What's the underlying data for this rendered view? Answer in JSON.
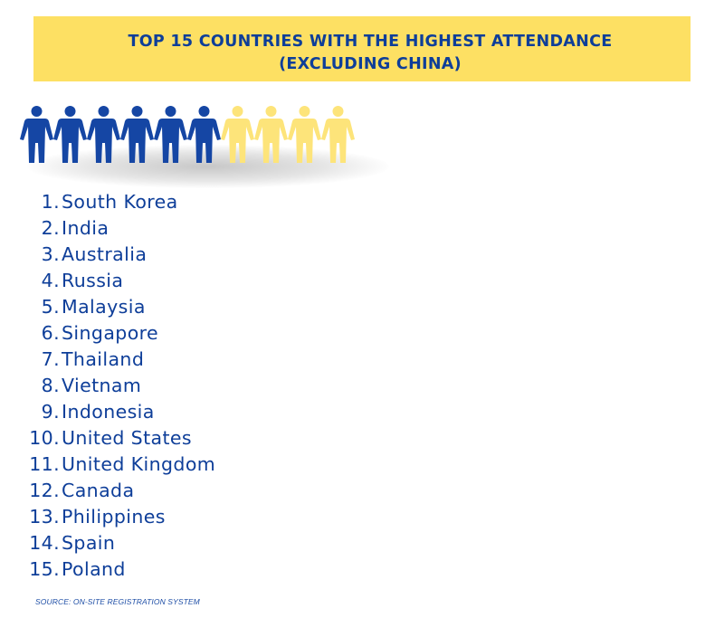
{
  "title": {
    "line1": "TOP 15 COUNTRIES WITH THE HIGHEST ATTENDANCE",
    "line2": "(EXCLUDING CHINA)"
  },
  "people_figures": {
    "count_total": 10,
    "count_highlighted": 6,
    "highlight_color": "#1546a4",
    "rest_color": "#fde47a"
  },
  "countries": [
    {
      "rank": "1.",
      "name": "South Korea"
    },
    {
      "rank": "2.",
      "name": "India"
    },
    {
      "rank": "3.",
      "name": "Australia"
    },
    {
      "rank": "4.",
      "name": "Russia"
    },
    {
      "rank": "5.",
      "name": "Malaysia"
    },
    {
      "rank": "6.",
      "name": "Singapore"
    },
    {
      "rank": "7.",
      "name": "Thailand"
    },
    {
      "rank": "8.",
      "name": "Vietnam"
    },
    {
      "rank": "9.",
      "name": "Indonesia"
    },
    {
      "rank": "10.",
      "name": "United States"
    },
    {
      "rank": "11.",
      "name": "United Kingdom"
    },
    {
      "rank": "12.",
      "name": "Canada"
    },
    {
      "rank": "13.",
      "name": "Philippines"
    },
    {
      "rank": "14.",
      "name": "Spain"
    },
    {
      "rank": "15.",
      "name": "Poland"
    }
  ],
  "source": "SOURCE: ON-SITE REGISTRATION SYSTEM",
  "colors": {
    "banner": "#fde063",
    "text": "#0e3e99"
  }
}
